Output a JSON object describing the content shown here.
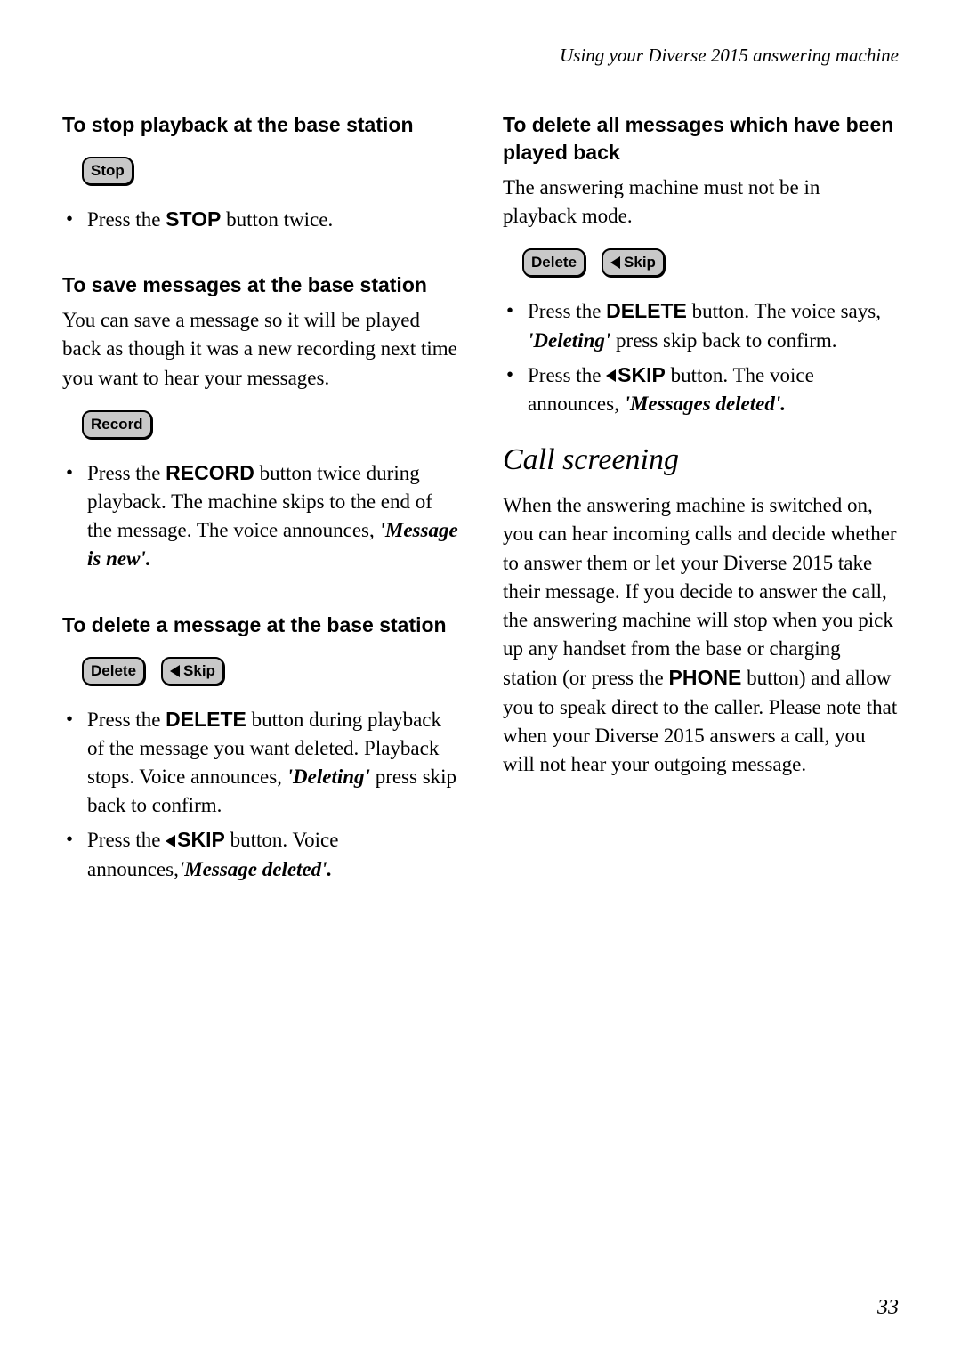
{
  "header": "Using your Diverse 2015 answering machine",
  "left": {
    "sec1": {
      "heading": "To stop playback at the base station",
      "buttons": [
        {
          "label": "Stop",
          "hasTri": false
        }
      ],
      "bullets": [
        {
          "pre": "Press the ",
          "bold": "STOP",
          "post": " button twice."
        }
      ]
    },
    "sec2": {
      "heading": "To save messages at the base station",
      "intro": "You can save a message so it will be played back as though it was a new recording next time you want to hear your messages.",
      "buttons": [
        {
          "label": "Record",
          "hasTri": false
        }
      ],
      "bullets": [
        {
          "pre": "Press the ",
          "bold": "RECORD",
          "post": " button twice during playback. The machine skips to the end of the message. The voice announces, ",
          "ital": "'Message is new'.",
          "tail": ""
        }
      ]
    },
    "sec3": {
      "heading": "To delete a message at the base station",
      "buttons": [
        {
          "label": "Delete",
          "hasTri": false
        },
        {
          "label": "Skip",
          "hasTri": true
        }
      ],
      "bullets": [
        {
          "pre": "Press the ",
          "bold": "DELETE",
          "post": " button during playback of the message you want deleted. Playback stops. Voice announces, ",
          "ital": "'Deleting'",
          "tail": " press skip back to confirm."
        },
        {
          "pre": "Press the ",
          "tri": true,
          "bold": "SKIP",
          "post": " button. Voice announces,",
          "ital": "'Message deleted'.",
          "tail": ""
        }
      ]
    }
  },
  "right": {
    "sec1": {
      "heading": "To delete all messages which have been played back",
      "intro": "The answering machine must not be in playback mode.",
      "buttons": [
        {
          "label": "Delete",
          "hasTri": false
        },
        {
          "label": "Skip",
          "hasTri": true
        }
      ],
      "bullets": [
        {
          "pre": "Press the ",
          "bold": "DELETE",
          "post": " button. The voice says, ",
          "ital": "'Deleting'",
          "tail": " press skip back to confirm."
        },
        {
          "pre": "Press the ",
          "tri": true,
          "bold": "SKIP",
          "post": " button. The voice announces, ",
          "ital": "'Messages deleted'.",
          "tail": ""
        }
      ]
    },
    "sec2": {
      "bigheading": "Call screening",
      "para_parts": {
        "pre": "When the answering machine is switched on, you can hear incoming calls and decide whether to answer them or let your Diverse 2015 take their message. If you decide to answer the call, the answering machine will stop when you pick up any handset from the base or charging station (or press the ",
        "bold": "PHONE",
        "post": " button) and allow you to speak direct to the caller. Please note that when your Diverse 2015 answers a call, you will not hear your outgoing message."
      }
    }
  },
  "pageNumber": "33"
}
